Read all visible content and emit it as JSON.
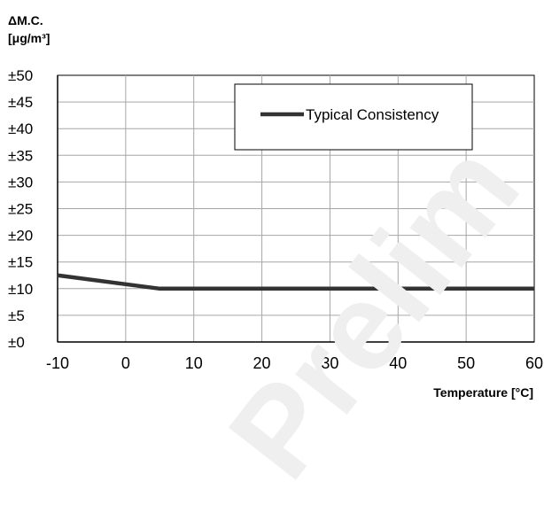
{
  "chart_data": {
    "type": "line",
    "title": "",
    "ylabel_line1": "ΔM.C.",
    "ylabel_line2": "[μg/m³]",
    "xlabel": "Temperature [°C]",
    "xlim": [
      -10,
      60
    ],
    "ylim": [
      0,
      50
    ],
    "x_ticks": [
      -10,
      0,
      10,
      20,
      30,
      40,
      50,
      60
    ],
    "y_ticks": [
      0,
      5,
      10,
      15,
      20,
      25,
      30,
      35,
      40,
      45,
      50
    ],
    "y_tick_labels": [
      "±0",
      "±5",
      "±10",
      "±15",
      "±20",
      "±25",
      "±30",
      "±35",
      "±40",
      "±45",
      "±50"
    ],
    "grid": true,
    "legend_position": "top-right",
    "series": [
      {
        "name": "Typical Consistency",
        "color": "#333333",
        "x": [
          -10,
          5,
          60
        ],
        "y": [
          12.5,
          10,
          10
        ]
      }
    ]
  },
  "watermark": "Prelim"
}
